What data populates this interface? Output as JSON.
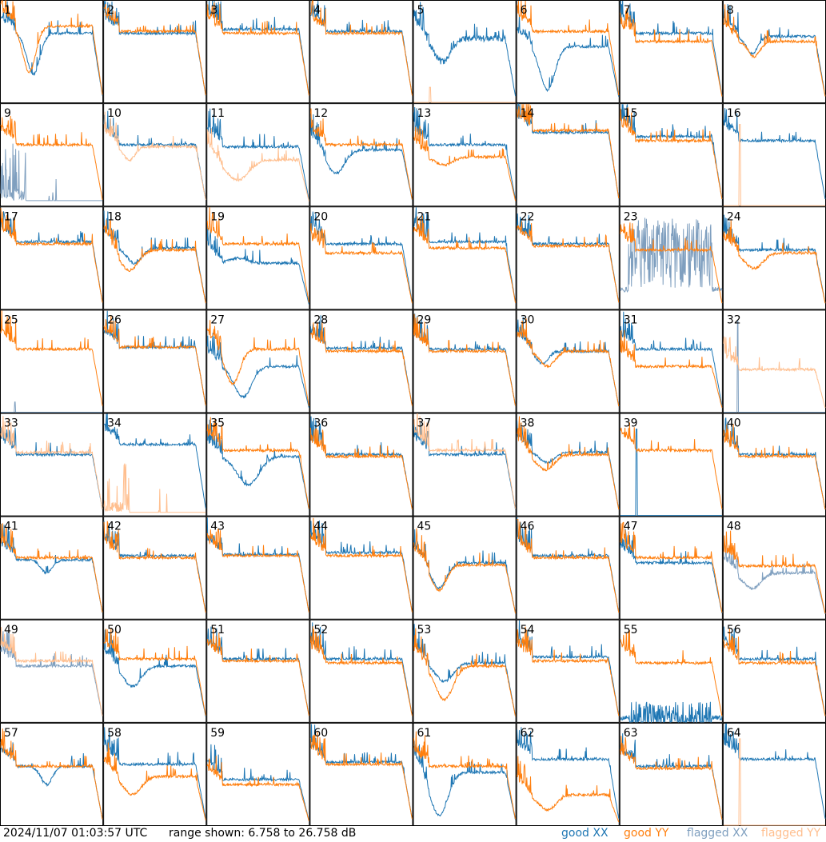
{
  "chart_data": {
    "type": "line",
    "grid": true,
    "panel_layout": "8x8",
    "range_min_db": 6.758,
    "range_max_db": 26.758,
    "colors": {
      "good_xx": "#1f77b4",
      "good_yy": "#ff7f0e",
      "flagged_xx": "#7f9fbf",
      "flagged_yy": "#ffbf8f"
    },
    "panels": [
      {
        "id": "1",
        "xx": {
          "shape": "dip",
          "dip": 0.28,
          "dc": 0.32,
          "dw": 0.09,
          "plateau": 0.68
        },
        "yy": {
          "shape": "dip",
          "dip": 0.3,
          "dc": 0.28,
          "dw": 0.09,
          "plateau": 0.75
        }
      },
      {
        "id": "2",
        "xx": {
          "shape": "flat",
          "plateau": 0.68
        },
        "yy": {
          "shape": "flat",
          "plateau": 0.7
        }
      },
      {
        "id": "3",
        "xx": {
          "shape": "flat",
          "plateau": 0.72
        },
        "yy": {
          "shape": "flat",
          "plateau": 0.68
        }
      },
      {
        "id": "4",
        "xx": {
          "shape": "flat",
          "plateau": 0.7
        },
        "yy": {
          "shape": "flat",
          "plateau": 0.68
        }
      },
      {
        "id": "5",
        "xx": {
          "shape": "dip",
          "dip": 0.4,
          "dc": 0.28,
          "dw": 0.11,
          "plateau": 0.63,
          "noise": 0.06
        },
        "yy": {
          "shape": "spike",
          "spike_pos": 0.16,
          "spike_h": 0.15,
          "flagged": true
        }
      },
      {
        "id": "6",
        "xx": {
          "shape": "dip",
          "dip": 0.12,
          "dc": 0.3,
          "dw": 0.1,
          "plateau": 0.55
        },
        "yy": {
          "shape": "flat",
          "plateau": 0.7
        }
      },
      {
        "id": "7",
        "xx": {
          "shape": "flat",
          "plateau": 0.68
        },
        "yy": {
          "shape": "flat",
          "plateau": 0.6
        }
      },
      {
        "id": "8",
        "xx": {
          "shape": "dip",
          "dip": 0.48,
          "dc": 0.28,
          "dw": 0.08,
          "plateau": 0.65
        },
        "yy": {
          "shape": "dip",
          "dip": 0.45,
          "dc": 0.3,
          "dw": 0.08,
          "plateau": 0.6
        }
      },
      {
        "id": "9",
        "xx": {
          "shape": "spike",
          "spike_pos": 0.12,
          "spike_h": 0.6,
          "flagged": true,
          "low": 0.05
        },
        "yy": {
          "shape": "flat",
          "plateau": 0.6
        }
      },
      {
        "id": "10",
        "xx": {
          "shape": "flat",
          "plateau": 0.6
        },
        "yy": {
          "shape": "dip",
          "dip": 0.45,
          "dc": 0.25,
          "dw": 0.08,
          "plateau": 0.58,
          "flagged": true
        }
      },
      {
        "id": "11",
        "xx": {
          "shape": "flat",
          "plateau": 0.58
        },
        "yy": {
          "shape": "dip",
          "dip": 0.25,
          "dc": 0.3,
          "dw": 0.15,
          "plateau": 0.45,
          "flagged": true
        }
      },
      {
        "id": "12",
        "xx": {
          "shape": "dip",
          "dip": 0.32,
          "dc": 0.25,
          "dw": 0.12,
          "plateau": 0.55
        },
        "yy": {
          "shape": "flat",
          "plateau": 0.6
        }
      },
      {
        "id": "13",
        "xx": {
          "shape": "flat",
          "plateau": 0.6
        },
        "yy": {
          "shape": "dip",
          "dip": 0.4,
          "dc": 0.3,
          "dw": 0.12,
          "plateau": 0.48
        }
      },
      {
        "id": "14",
        "xx": {
          "shape": "flat",
          "plateau": 0.72
        },
        "yy": {
          "shape": "flat",
          "plateau": 0.74
        }
      },
      {
        "id": "15",
        "xx": {
          "shape": "flat",
          "plateau": 0.68
        },
        "yy": {
          "shape": "flat",
          "plateau": 0.64
        }
      },
      {
        "id": "16",
        "xx": {
          "shape": "flat",
          "plateau": 0.64
        },
        "yy": {
          "shape": "spike",
          "spike_pos": 0.16,
          "spike_h": 0.8,
          "flagged": true
        }
      },
      {
        "id": "17",
        "xx": {
          "shape": "flat",
          "plateau": 0.66
        },
        "yy": {
          "shape": "flat",
          "plateau": 0.64
        }
      },
      {
        "id": "18",
        "xx": {
          "shape": "dip",
          "dip": 0.45,
          "dc": 0.3,
          "dw": 0.1,
          "plateau": 0.6
        },
        "yy": {
          "shape": "dip",
          "dip": 0.38,
          "dc": 0.25,
          "dw": 0.12,
          "plateau": 0.58
        }
      },
      {
        "id": "19",
        "xx": {
          "shape": "dip",
          "dip": 0.5,
          "dc": 0.3,
          "dw": 0.12,
          "plateau": 0.45
        },
        "yy": {
          "shape": "flat",
          "plateau": 0.64
        }
      },
      {
        "id": "20",
        "xx": {
          "shape": "flat",
          "plateau": 0.64
        },
        "yy": {
          "shape": "flat",
          "plateau": 0.55
        }
      },
      {
        "id": "21",
        "xx": {
          "shape": "flat",
          "plateau": 0.66
        },
        "yy": {
          "shape": "flat",
          "plateau": 0.6
        }
      },
      {
        "id": "22",
        "xx": {
          "shape": "flat",
          "plateau": 0.64
        },
        "yy": {
          "shape": "flat",
          "plateau": 0.62
        }
      },
      {
        "id": "23",
        "xx": {
          "shape": "noisy",
          "plateau": 0.55,
          "noise": 0.35,
          "flagged": true
        },
        "yy": {
          "shape": "flat",
          "plateau": 0.58
        }
      },
      {
        "id": "24",
        "xx": {
          "shape": "flat",
          "plateau": 0.58
        },
        "yy": {
          "shape": "dip",
          "dip": 0.4,
          "dc": 0.3,
          "dw": 0.12,
          "plateau": 0.55
        }
      },
      {
        "id": "25",
        "xx": {
          "shape": "spike",
          "spike_pos": 0.14,
          "spike_h": 0.1,
          "flagged": true
        },
        "yy": {
          "shape": "flat",
          "plateau": 0.62
        }
      },
      {
        "id": "26",
        "xx": {
          "shape": "flat",
          "plateau": 0.64
        },
        "yy": {
          "shape": "flat",
          "plateau": 0.64
        }
      },
      {
        "id": "27",
        "xx": {
          "shape": "dip",
          "dip": 0.15,
          "dc": 0.35,
          "dw": 0.12,
          "plateau": 0.45
        },
        "yy": {
          "shape": "dip",
          "dip": 0.28,
          "dc": 0.25,
          "dw": 0.1,
          "plateau": 0.62
        }
      },
      {
        "id": "28",
        "xx": {
          "shape": "flat",
          "plateau": 0.63
        },
        "yy": {
          "shape": "flat",
          "plateau": 0.6
        }
      },
      {
        "id": "29",
        "xx": {
          "shape": "flat",
          "plateau": 0.62
        },
        "yy": {
          "shape": "flat",
          "plateau": 0.6
        }
      },
      {
        "id": "30",
        "xx": {
          "shape": "dip",
          "dip": 0.48,
          "dc": 0.25,
          "dw": 0.08,
          "plateau": 0.6
        },
        "yy": {
          "shape": "dip",
          "dip": 0.45,
          "dc": 0.3,
          "dw": 0.1,
          "plateau": 0.6
        }
      },
      {
        "id": "31",
        "xx": {
          "shape": "flat",
          "plateau": 0.62
        },
        "yy": {
          "shape": "flat",
          "plateau": 0.45
        }
      },
      {
        "id": "32",
        "xx": {
          "shape": "spike",
          "spike_pos": 0.14,
          "spike_h": 0.9,
          "flagged": true
        },
        "yy": {
          "shape": "flat",
          "plateau": 0.42,
          "flagged": true
        }
      },
      {
        "id": "33",
        "xx": {
          "shape": "flat",
          "plateau": 0.6
        },
        "yy": {
          "shape": "flat",
          "plateau": 0.62,
          "flagged": true
        }
      },
      {
        "id": "34",
        "xx": {
          "shape": "flat",
          "plateau": 0.7
        },
        "yy": {
          "shape": "spike",
          "spike_pos": 0.2,
          "spike_h": 0.55,
          "flagged": true,
          "low": 0.03
        }
      },
      {
        "id": "35",
        "xx": {
          "shape": "dip",
          "dip": 0.3,
          "dc": 0.4,
          "dw": 0.15,
          "plateau": 0.58
        },
        "yy": {
          "shape": "flat",
          "plateau": 0.64
        }
      },
      {
        "id": "36",
        "xx": {
          "shape": "flat",
          "plateau": 0.6
        },
        "yy": {
          "shape": "flat",
          "plateau": 0.58
        }
      },
      {
        "id": "37",
        "xx": {
          "shape": "flat",
          "plateau": 0.6
        },
        "yy": {
          "shape": "flat",
          "plateau": 0.64,
          "flagged": true
        }
      },
      {
        "id": "38",
        "xx": {
          "shape": "dip",
          "dip": 0.52,
          "dc": 0.3,
          "dw": 0.1,
          "plateau": 0.62
        },
        "yy": {
          "shape": "dip",
          "dip": 0.45,
          "dc": 0.28,
          "dw": 0.12,
          "plateau": 0.6
        }
      },
      {
        "id": "39",
        "xx": {
          "shape": "spike",
          "spike_pos": 0.16,
          "spike_h": 0.85
        },
        "yy": {
          "shape": "flat",
          "plateau": 0.64
        }
      },
      {
        "id": "40",
        "xx": {
          "shape": "flat",
          "plateau": 0.6
        },
        "yy": {
          "shape": "flat",
          "plateau": 0.58
        }
      },
      {
        "id": "41",
        "xx": {
          "shape": "dip",
          "dip": 0.45,
          "dc": 0.45,
          "dw": 0.08,
          "plateau": 0.58
        },
        "yy": {
          "shape": "flat",
          "plateau": 0.6
        }
      },
      {
        "id": "42",
        "xx": {
          "shape": "flat",
          "plateau": 0.62
        },
        "yy": {
          "shape": "flat",
          "plateau": 0.6
        }
      },
      {
        "id": "43",
        "xx": {
          "shape": "flat",
          "plateau": 0.63
        },
        "yy": {
          "shape": "flat",
          "plateau": 0.62
        }
      },
      {
        "id": "44",
        "xx": {
          "shape": "flat",
          "plateau": 0.65
        },
        "yy": {
          "shape": "flat",
          "plateau": 0.62
        }
      },
      {
        "id": "45",
        "xx": {
          "shape": "dip",
          "dip": 0.3,
          "dc": 0.25,
          "dw": 0.1,
          "plateau": 0.55
        },
        "yy": {
          "shape": "dip",
          "dip": 0.28,
          "dc": 0.25,
          "dw": 0.1,
          "plateau": 0.53
        }
      },
      {
        "id": "46",
        "xx": {
          "shape": "flat",
          "plateau": 0.62
        },
        "yy": {
          "shape": "flat",
          "plateau": 0.6
        }
      },
      {
        "id": "47",
        "xx": {
          "shape": "flat",
          "plateau": 0.55
        },
        "yy": {
          "shape": "flat",
          "plateau": 0.6
        }
      },
      {
        "id": "48",
        "xx": {
          "shape": "dip",
          "dip": 0.3,
          "dc": 0.28,
          "dw": 0.12,
          "plateau": 0.45,
          "flagged": true
        },
        "yy": {
          "shape": "flat",
          "plateau": 0.52
        }
      },
      {
        "id": "49",
        "xx": {
          "shape": "flat",
          "plateau": 0.55,
          "flagged": true
        },
        "yy": {
          "shape": "flat",
          "plateau": 0.6,
          "flagged": true
        }
      },
      {
        "id": "50",
        "xx": {
          "shape": "dip",
          "dip": 0.35,
          "dc": 0.28,
          "dw": 0.12,
          "plateau": 0.55
        },
        "yy": {
          "shape": "flat",
          "plateau": 0.62
        }
      },
      {
        "id": "51",
        "xx": {
          "shape": "flat",
          "plateau": 0.62
        },
        "yy": {
          "shape": "flat",
          "plateau": 0.6
        }
      },
      {
        "id": "52",
        "xx": {
          "shape": "flat",
          "plateau": 0.62
        },
        "yy": {
          "shape": "flat",
          "plateau": 0.58
        }
      },
      {
        "id": "53",
        "xx": {
          "shape": "dip",
          "dip": 0.4,
          "dc": 0.3,
          "dw": 0.12,
          "plateau": 0.58
        },
        "yy": {
          "shape": "dip",
          "dip": 0.22,
          "dc": 0.3,
          "dw": 0.12,
          "plateau": 0.55
        }
      },
      {
        "id": "54",
        "xx": {
          "shape": "flat",
          "plateau": 0.64
        },
        "yy": {
          "shape": "flat",
          "plateau": 0.6
        }
      },
      {
        "id": "55",
        "xx": {
          "shape": "noisy",
          "plateau": 0.05,
          "noise": 0.15,
          "flagged": false
        },
        "yy": {
          "shape": "flat",
          "plateau": 0.58
        }
      },
      {
        "id": "56",
        "xx": {
          "shape": "flat",
          "plateau": 0.62
        },
        "yy": {
          "shape": "flat",
          "plateau": 0.58
        }
      },
      {
        "id": "57",
        "xx": {
          "shape": "dip",
          "dip": 0.4,
          "dc": 0.45,
          "dw": 0.08,
          "plateau": 0.58
        },
        "yy": {
          "shape": "flat",
          "plateau": 0.58
        }
      },
      {
        "id": "58",
        "xx": {
          "shape": "flat",
          "plateau": 0.6
        },
        "yy": {
          "shape": "dip",
          "dip": 0.3,
          "dc": 0.28,
          "dw": 0.12,
          "plateau": 0.48
        }
      },
      {
        "id": "59",
        "xx": {
          "shape": "flat",
          "plateau": 0.45
        },
        "yy": {
          "shape": "flat",
          "plateau": 0.4
        }
      },
      {
        "id": "60",
        "xx": {
          "shape": "flat",
          "plateau": 0.62
        },
        "yy": {
          "shape": "flat",
          "plateau": 0.6
        }
      },
      {
        "id": "61",
        "xx": {
          "shape": "dip",
          "dip": 0.1,
          "dc": 0.25,
          "dw": 0.12,
          "plateau": 0.52
        },
        "yy": {
          "shape": "flat",
          "plateau": 0.58
        }
      },
      {
        "id": "62",
        "xx": {
          "shape": "flat",
          "plateau": 0.65
        },
        "yy": {
          "shape": "dip",
          "dip": 0.15,
          "dc": 0.3,
          "dw": 0.12,
          "plateau": 0.3
        }
      },
      {
        "id": "63",
        "xx": {
          "shape": "flat",
          "plateau": 0.58
        },
        "yy": {
          "shape": "flat",
          "plateau": 0.56
        }
      },
      {
        "id": "64",
        "xx": {
          "shape": "flat",
          "plateau": 0.65
        },
        "yy": {
          "shape": "spike",
          "spike_pos": 0.16,
          "spike_h": 0.85,
          "flagged": true
        }
      }
    ]
  },
  "footer": {
    "timestamp": "2024/11/07 01:03:57 UTC",
    "range": "range shown: 6.758 to 26.758 dB",
    "legend_good_xx": "good XX",
    "legend_good_yy": "good YY",
    "legend_flagged_xx": "flagged XX",
    "legend_flagged_yy": "flagged YY"
  }
}
